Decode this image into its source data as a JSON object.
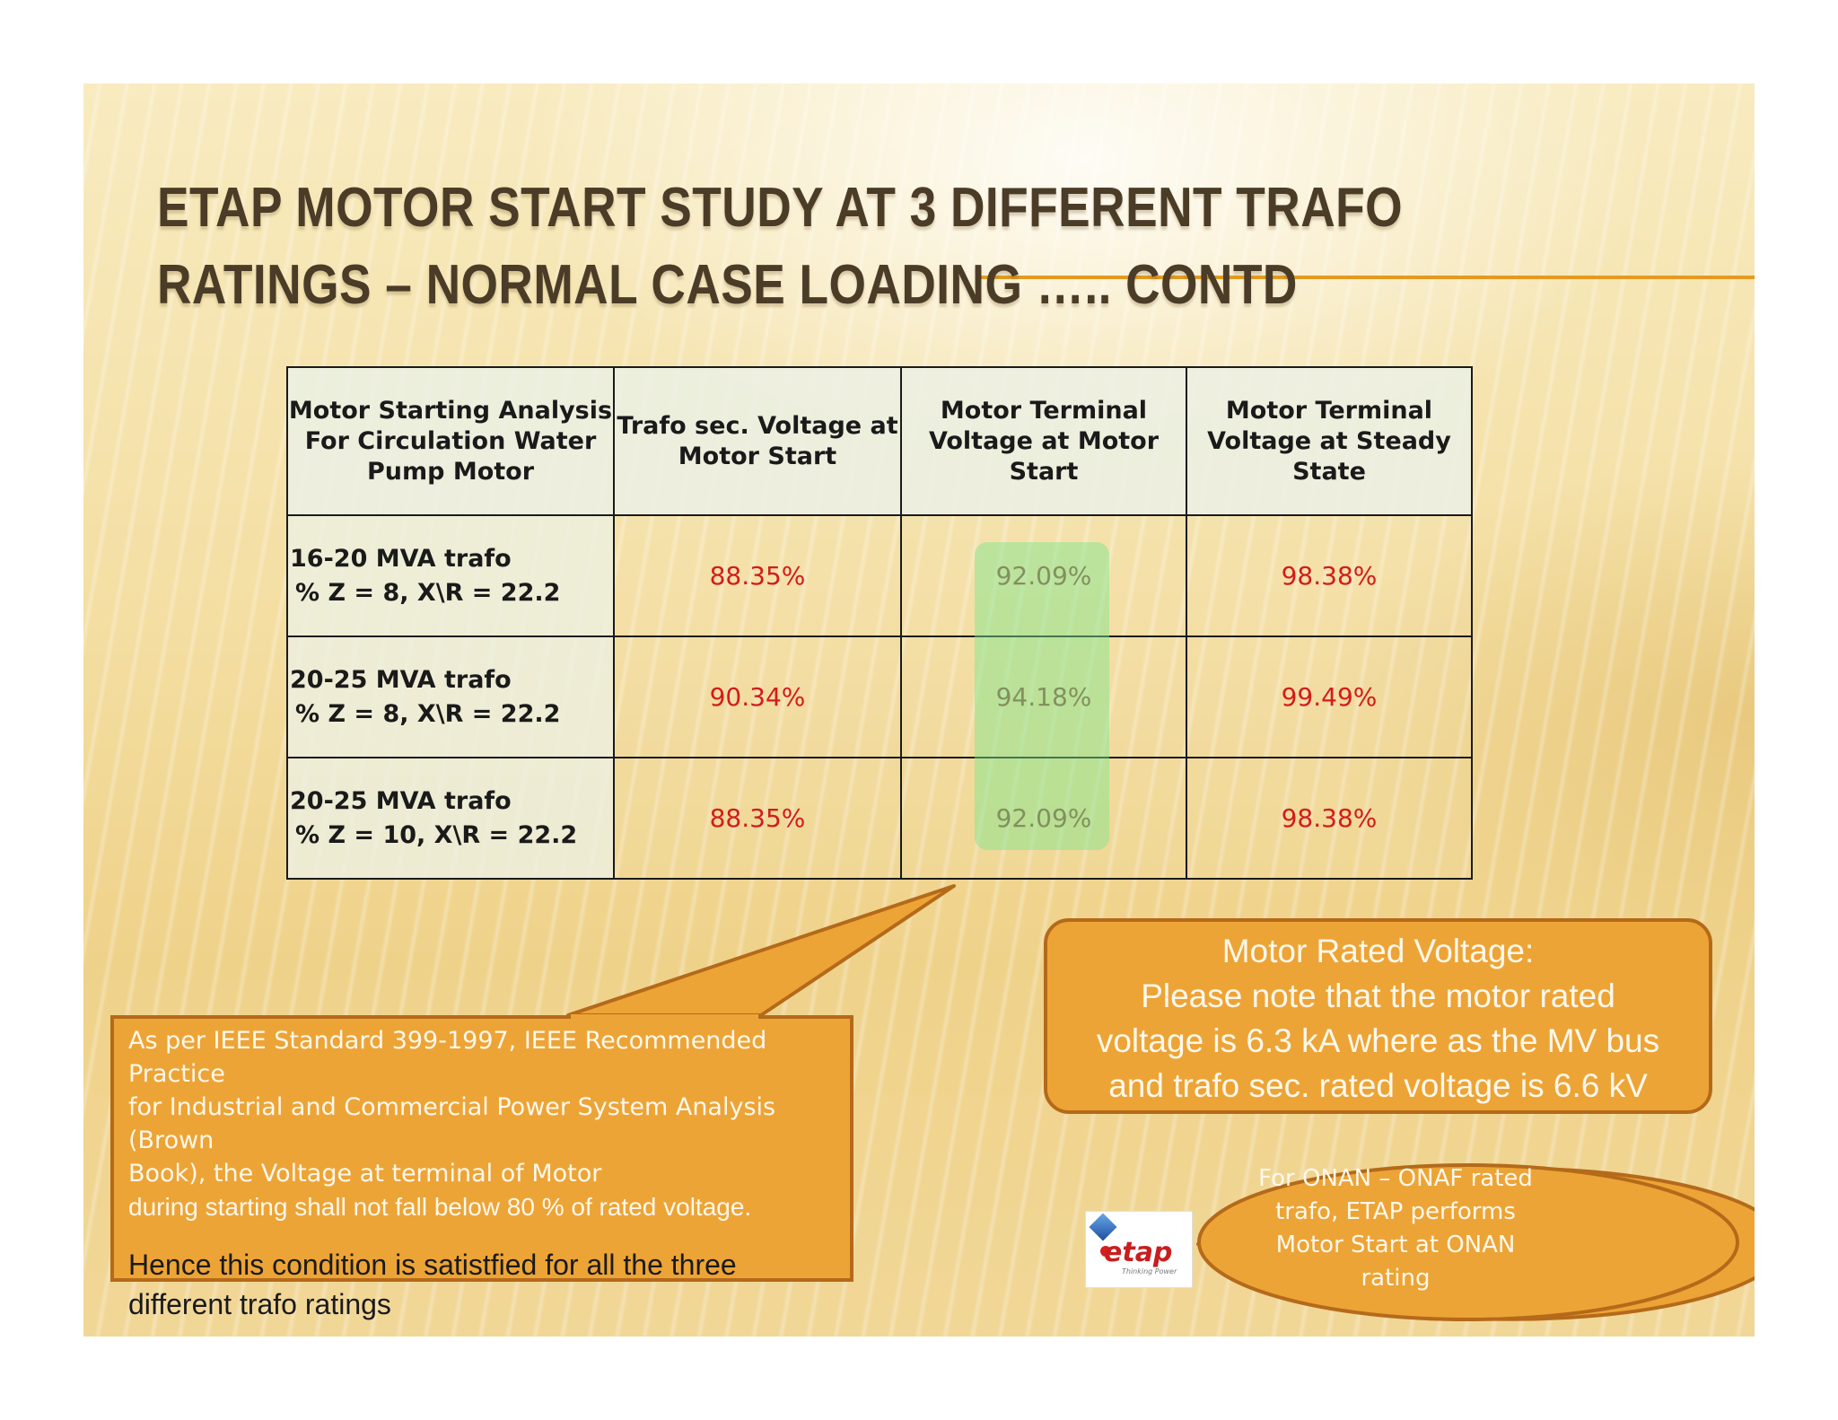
{
  "slide": {
    "title_lines": [
      "ETAP MOTOR START STUDY AT 3 DIFFERENT TRAFO",
      "RATINGS – NORMAL CASE LOADING ….. CONTD"
    ]
  },
  "table": {
    "headers": [
      [
        "Motor Starting Analysis",
        "For Circulation Water",
        "Pump Motor"
      ],
      [
        "Trafo sec. Voltage at",
        "Motor Start"
      ],
      [
        "Motor Terminal",
        "Voltage at Motor",
        "Start"
      ],
      [
        "Motor Terminal",
        "Voltage at Steady",
        "State"
      ]
    ],
    "rows": [
      {
        "label": [
          "16-20 MVA trafo",
          "% Z = 8, X\\R = 22.2"
        ],
        "trafo_sec_voltage": "88.35%",
        "motor_terminal_start": "92.09%",
        "motor_terminal_steady": "98.38%"
      },
      {
        "label": [
          "20-25 MVA trafo",
          "% Z = 8, X\\R = 22.2"
        ],
        "trafo_sec_voltage": "90.34%",
        "motor_terminal_start": "94.18%",
        "motor_terminal_steady": "99.49%"
      },
      {
        "label": [
          "20-25 MVA trafo",
          "% Z = 10, X\\R = 22.2"
        ],
        "trafo_sec_voltage": "88.35%",
        "motor_terminal_start": "92.09%",
        "motor_terminal_steady": "98.38%"
      }
    ]
  },
  "callouts": {
    "standard_note": {
      "lines": [
        "As per IEEE Standard 399-1997, IEEE Recommended Practice",
        "for Industrial and Commercial Power System Analysis (Brown",
        "Book), the Voltage at terminal of Motor"
      ],
      "requirement": "during  starting shall not fall below 80 % of rated voltage.",
      "conclusion_lines": [
        "Hence this condition is satistfied for all the three",
        "different trafo ratings"
      ]
    },
    "rated_voltage_note": {
      "heading": "Motor Rated Voltage:",
      "lines": [
        "Please note that the motor rated",
        "voltage is 6.3 kA where as the MV bus",
        "and trafo sec. rated voltage is 6.6 kV"
      ]
    },
    "onan_note": {
      "lines": [
        "For ONAN – ONAF rated",
        "trafo, ETAP performs",
        "Motor Start at ONAN",
        "rating"
      ]
    }
  },
  "logo": {
    "word": "etap",
    "tagline": "Thinking Power"
  },
  "colors": {
    "title": "#4b3c28",
    "accent_line": "#e39a20",
    "callout_fill": "#eda436",
    "callout_border": "#b46a1a",
    "value_red": "#d21c1c",
    "highlight_green": "#78e68c"
  }
}
